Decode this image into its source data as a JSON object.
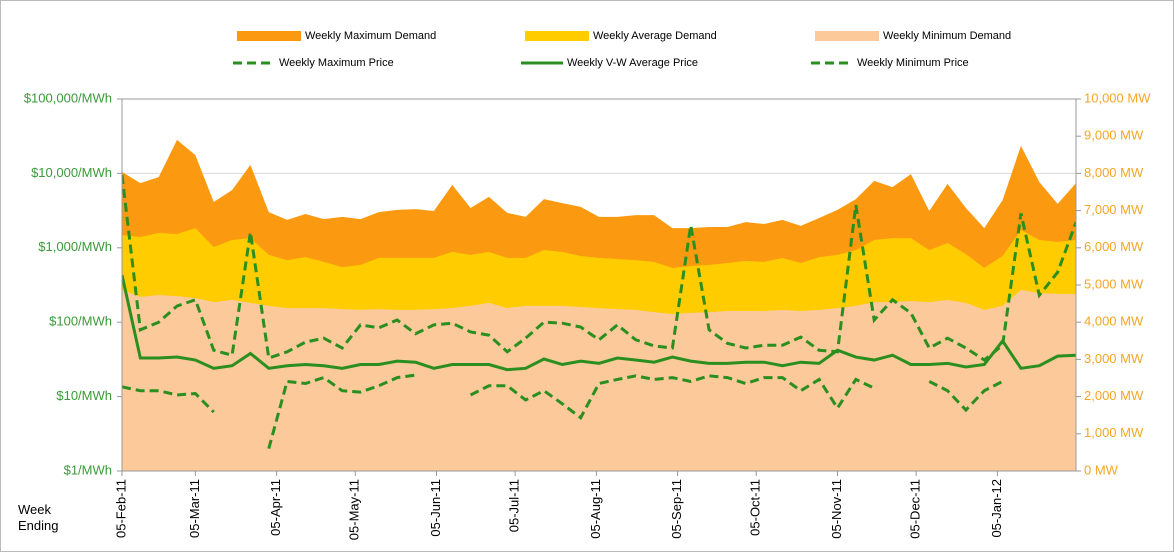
{
  "chart_data": {
    "type": "area_line",
    "x_label": "Week Ending",
    "x": [
      "2011-02-05",
      "2011-02-12",
      "2011-02-19",
      "2011-02-26",
      "2011-03-05",
      "2011-03-12",
      "2011-03-19",
      "2011-03-26",
      "2011-04-02",
      "2011-04-09",
      "2011-04-16",
      "2011-04-23",
      "2011-04-30",
      "2011-05-07",
      "2011-05-14",
      "2011-05-21",
      "2011-05-28",
      "2011-06-04",
      "2011-06-11",
      "2011-06-18",
      "2011-06-25",
      "2011-07-02",
      "2011-07-09",
      "2011-07-16",
      "2011-07-23",
      "2011-07-30",
      "2011-08-06",
      "2011-08-13",
      "2011-08-20",
      "2011-08-27",
      "2011-09-03",
      "2011-09-10",
      "2011-09-17",
      "2011-09-24",
      "2011-10-01",
      "2011-10-08",
      "2011-10-15",
      "2011-10-22",
      "2011-10-29",
      "2011-11-05",
      "2011-11-12",
      "2011-11-19",
      "2011-11-26",
      "2011-12-03",
      "2011-12-10",
      "2011-12-17",
      "2011-12-24",
      "2011-12-31",
      "2012-01-07",
      "2012-01-14",
      "2012-01-21",
      "2012-01-28",
      "2012-02-04"
    ],
    "xlim": [
      "2011-02-05",
      "2012-02-04"
    ],
    "xticks": [
      {
        "value": "2011-02-05",
        "label": "05-Feb-11"
      },
      {
        "value": "2011-03-05",
        "label": "05-Mar-11"
      },
      {
        "value": "2011-04-05",
        "label": "05-Apr-11"
      },
      {
        "value": "2011-05-05",
        "label": "05-May-11"
      },
      {
        "value": "2011-06-05",
        "label": "05-Jun-11"
      },
      {
        "value": "2011-07-05",
        "label": "05-Jul-11"
      },
      {
        "value": "2011-08-05",
        "label": "05-Aug-11"
      },
      {
        "value": "2011-09-05",
        "label": "05-Sep-11"
      },
      {
        "value": "2011-10-05",
        "label": "05-Oct-11"
      },
      {
        "value": "2011-11-05",
        "label": "05-Nov-11"
      },
      {
        "value": "2011-12-05",
        "label": "05-Dec-11"
      },
      {
        "value": "2012-01-05",
        "label": "05-Jan-12"
      }
    ],
    "ylim": [
      1,
      100000
    ],
    "log_y": true,
    "yticks": [
      {
        "value": 1,
        "label": "$1/MWh"
      },
      {
        "value": 10,
        "label": "$10/MWh"
      },
      {
        "value": 100,
        "label": "$100/MWh"
      },
      {
        "value": 1000,
        "label": "$1,000/MWh"
      },
      {
        "value": 10000,
        "label": "$10,000/MWh"
      },
      {
        "value": 100000,
        "label": "$100,000/MWh"
      }
    ],
    "y2lim": [
      0,
      10000
    ],
    "y2ticks": [
      {
        "value": 0,
        "label": "0 MW"
      },
      {
        "value": 1000,
        "label": "1,000 MW"
      },
      {
        "value": 2000,
        "label": "2,000 MW"
      },
      {
        "value": 3000,
        "label": "3,000 MW"
      },
      {
        "value": 4000,
        "label": "4,000 MW"
      },
      {
        "value": 5000,
        "label": "5,000 MW"
      },
      {
        "value": 6000,
        "label": "6,000 MW"
      },
      {
        "value": 7000,
        "label": "7,000 MW"
      },
      {
        "value": 8000,
        "label": "8,000 MW"
      },
      {
        "value": 9000,
        "label": "9,000 MW"
      },
      {
        "value": 10000,
        "label": "10,000 MW"
      }
    ],
    "grid": true,
    "legend": "top",
    "y_color": "#3a9a3a",
    "y2_color": "#f5a623",
    "series": [
      {
        "name": "Weekly Maximum Demand",
        "type": "area",
        "axis": "y2",
        "color": "#fb9a10",
        "values": [
          8040,
          7740,
          7900,
          8900,
          8490,
          7230,
          7550,
          8230,
          6960,
          6750,
          6910,
          6770,
          6830,
          6770,
          6960,
          7020,
          7040,
          6990,
          7690,
          7070,
          7370,
          6940,
          6830,
          7310,
          7200,
          7100,
          6830,
          6830,
          6880,
          6880,
          6530,
          6530,
          6560,
          6560,
          6690,
          6640,
          6750,
          6590,
          6800,
          7020,
          7310,
          7800,
          7630,
          7980,
          6990,
          7720,
          7070,
          6530,
          7280,
          8740,
          7770,
          7180,
          7740
        ]
      },
      {
        "name": "Weekly Average Demand",
        "type": "area",
        "axis": "y2",
        "color": "#ffcc00",
        "values": [
          6340,
          6290,
          6400,
          6370,
          6530,
          6020,
          6210,
          6260,
          5810,
          5670,
          5750,
          5620,
          5480,
          5540,
          5730,
          5730,
          5730,
          5730,
          5890,
          5810,
          5890,
          5730,
          5730,
          5940,
          5890,
          5780,
          5730,
          5700,
          5670,
          5620,
          5460,
          5510,
          5540,
          5590,
          5650,
          5620,
          5730,
          5590,
          5750,
          5810,
          5940,
          6210,
          6260,
          6260,
          5940,
          6130,
          5830,
          5460,
          5780,
          6480,
          6210,
          6160,
          6210
        ]
      },
      {
        "name": "Weekly Minimum Demand",
        "type": "area",
        "axis": "y2",
        "color": "#fbc99a",
        "values": [
          4870,
          4680,
          4730,
          4700,
          4650,
          4540,
          4600,
          4520,
          4440,
          4380,
          4380,
          4380,
          4350,
          4330,
          4350,
          4330,
          4330,
          4350,
          4380,
          4440,
          4520,
          4380,
          4440,
          4440,
          4440,
          4410,
          4380,
          4350,
          4330,
          4270,
          4220,
          4250,
          4270,
          4300,
          4300,
          4300,
          4330,
          4300,
          4330,
          4380,
          4440,
          4540,
          4540,
          4570,
          4540,
          4600,
          4520,
          4330,
          4440,
          4870,
          4780,
          4760,
          4760
        ]
      },
      {
        "name": "Weekly Maximum Price",
        "type": "line",
        "dash": true,
        "color": "#2a8f1e",
        "values": [
          9500,
          79,
          100,
          165,
          200,
          42,
          36,
          1620,
          33,
          40,
          54,
          61,
          45,
          92,
          84,
          107,
          70,
          92,
          97,
          74,
          67,
          40,
          61,
          100,
          97,
          86,
          58,
          92,
          58,
          48,
          45,
          2000,
          79,
          52,
          45,
          49,
          49,
          63,
          42,
          40,
          3750,
          107,
          200,
          133,
          45,
          61,
          45,
          31,
          49,
          2900,
          230,
          470,
          2200
        ]
      },
      {
        "name": "Weekly V-W Average Price",
        "type": "line",
        "dash": false,
        "color": "#2a8f1e",
        "values": [
          430,
          33,
          33,
          34,
          31,
          24,
          26,
          38,
          24,
          26,
          27,
          26,
          24,
          27,
          27,
          30,
          29,
          24,
          27,
          27,
          27,
          23,
          24,
          32,
          27,
          30,
          28,
          33,
          31,
          29,
          34,
          30,
          28,
          28,
          29,
          29,
          26,
          29,
          28,
          42,
          34,
          31,
          36,
          27,
          27,
          28,
          25,
          27,
          56,
          24,
          26,
          35,
          36
        ]
      },
      {
        "name": "Weekly Minimum Price",
        "type": "line",
        "dash": true,
        "color": "#2a8f1e",
        "values": [
          13.5,
          12,
          12,
          10.5,
          11,
          6.2,
          null,
          null,
          2,
          16,
          15,
          18,
          12,
          11.5,
          14,
          18,
          19.5,
          null,
          null,
          10.5,
          14,
          14,
          9,
          12,
          8,
          5.2,
          15,
          17,
          19,
          17,
          18,
          16,
          19,
          18,
          15,
          18,
          18,
          12,
          17,
          7,
          17,
          13,
          null,
          null,
          16,
          12,
          6.6,
          12,
          16,
          null,
          null,
          null,
          null
        ]
      }
    ]
  }
}
